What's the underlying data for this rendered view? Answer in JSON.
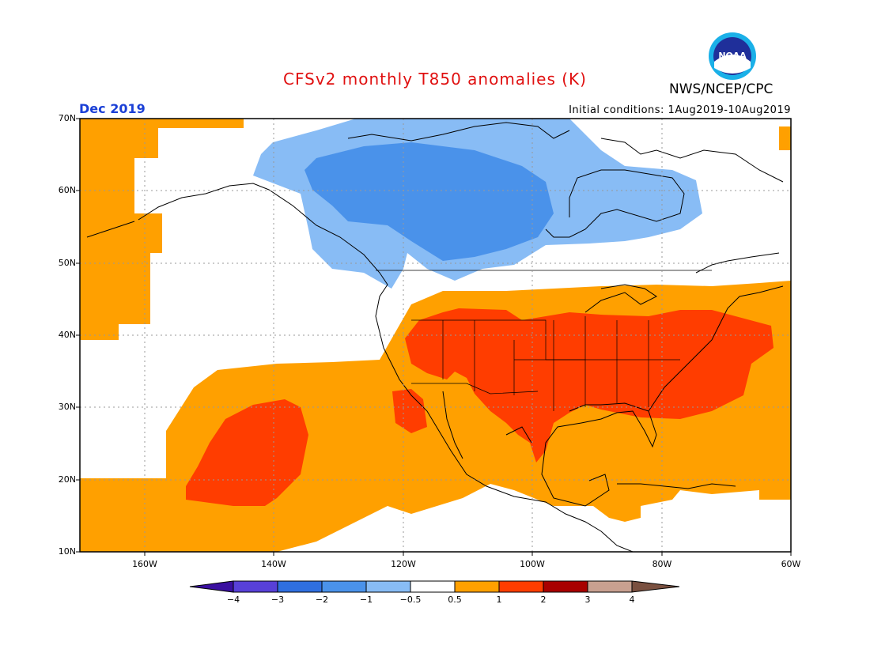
{
  "title": "CFSv2 monthly T850 anomalies (K)",
  "org": "NWS/NCEP/CPC",
  "logo": {
    "text": "NOAA",
    "icon": "noaa-logo"
  },
  "valid_month": "Dec 2019",
  "initial_conditions": "Initial conditions: 1Aug2019-10Aug2019",
  "lat_labels": [
    "70N",
    "60N",
    "50N",
    "40N",
    "30N",
    "20N",
    "10N"
  ],
  "lon_labels": [
    "160W",
    "140W",
    "120W",
    "100W",
    "80W",
    "60W"
  ],
  "colorbar": {
    "labels": [
      "−4",
      "−3",
      "−2",
      "−1",
      "−0.5",
      "0.5",
      "1",
      "2",
      "3",
      "4"
    ],
    "colors": [
      "#3a0fa0",
      "#5840d8",
      "#2f6fe0",
      "#4a92ea",
      "#88bcf5",
      "#ffffff",
      "#ffa000",
      "#ff3d00",
      "#a80000",
      "#c8a090",
      "#7a5040"
    ]
  }
}
